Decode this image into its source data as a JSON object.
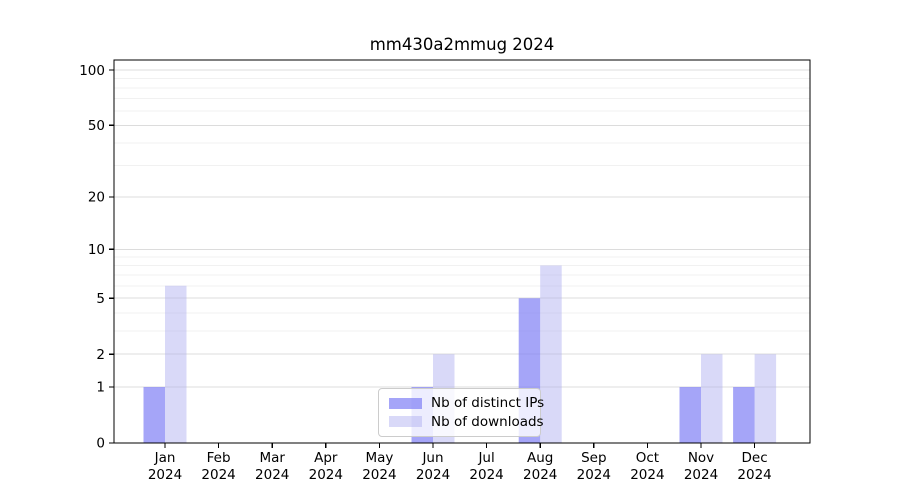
{
  "chart_data": {
    "type": "bar",
    "title": "mm430a2mmug 2024",
    "categories": [
      "Jan",
      "Feb",
      "Mar",
      "Apr",
      "May",
      "Jun",
      "Jul",
      "Aug",
      "Sep",
      "Oct",
      "Nov",
      "Dec"
    ],
    "year": "2024",
    "series": [
      {
        "name": "Nb of distinct IPs",
        "values": [
          1,
          0,
          0,
          0,
          0,
          1,
          0,
          5,
          0,
          0,
          1,
          1
        ],
        "color": "#7f7ff5",
        "fill_opacity": 0.7
      },
      {
        "name": "Nb of downloads",
        "values": [
          6,
          0,
          0,
          0,
          0,
          2,
          0,
          8,
          0,
          0,
          2,
          2
        ],
        "color": "#aaaaf0",
        "fill_opacity": 0.45
      }
    ],
    "y_axis": {
      "scale": "log1p",
      "ticks": [
        100,
        50,
        20,
        10,
        5,
        2,
        1,
        0
      ],
      "minor_ticks": [
        3,
        4,
        6,
        7,
        8,
        9,
        30,
        40,
        60,
        70,
        80,
        90
      ],
      "range": [
        0,
        113
      ]
    },
    "x_axis": {
      "tick_label_lines": 2
    },
    "legend": {
      "position": "lower-center",
      "entries": [
        "Nb of distinct IPs",
        "Nb of downloads"
      ]
    },
    "grid": {
      "major_color": "#dcdcdc",
      "minor_color": "#f1f1f1"
    },
    "frame_color": "#000000",
    "text_color": "#000000",
    "background": "#ffffff"
  }
}
